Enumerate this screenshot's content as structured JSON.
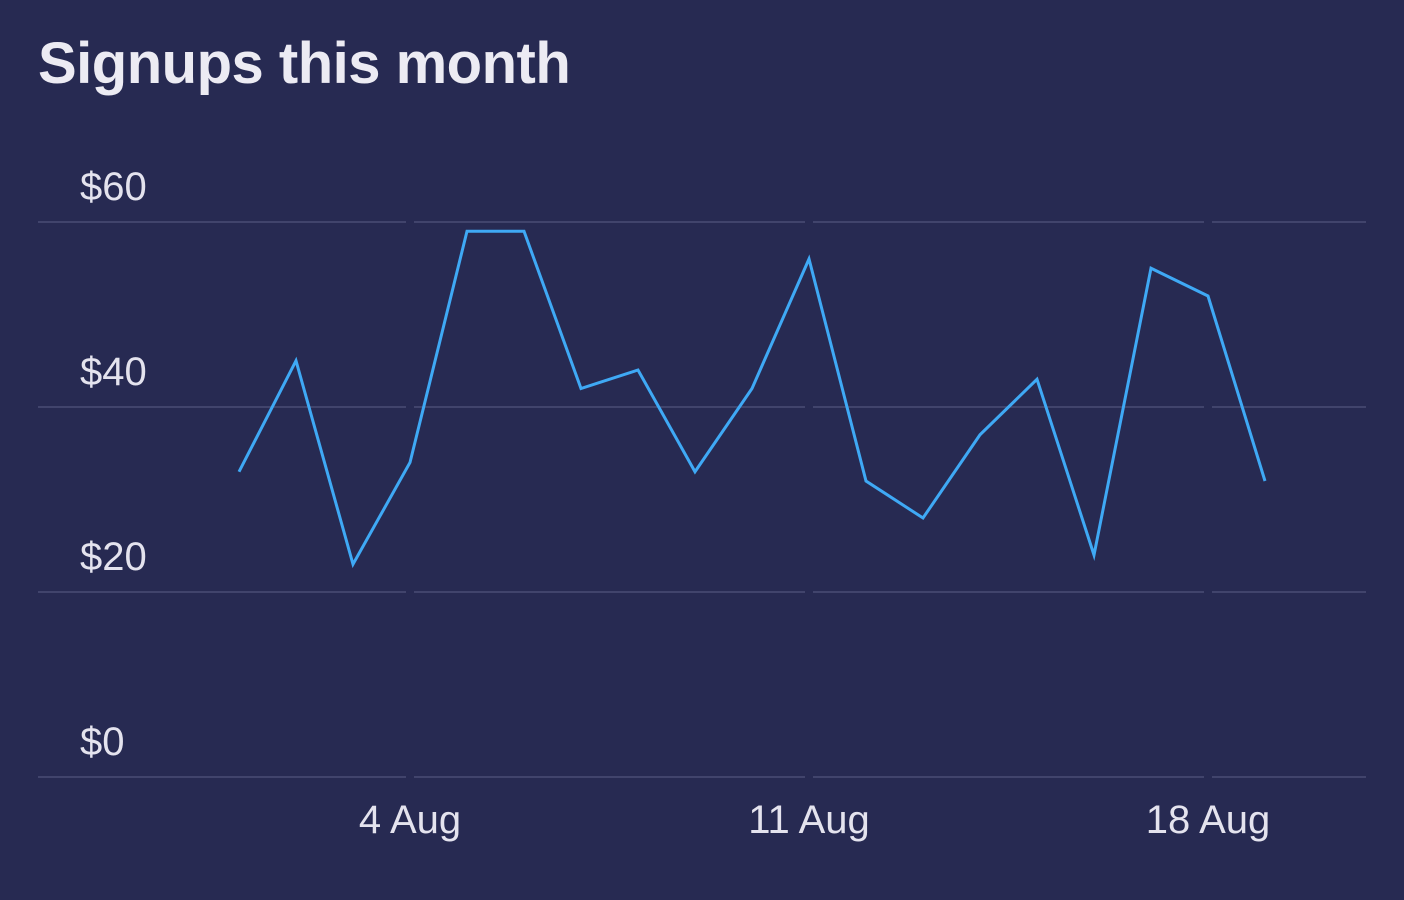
{
  "title": "Signups this month",
  "colors": {
    "background": "#272a52",
    "line": "#3fa9f5",
    "grid": "#4a4d74",
    "text": "#e4e3ee"
  },
  "chart_data": {
    "type": "line",
    "title": "Signups this month",
    "xlabel": "",
    "ylabel": "",
    "grid": true,
    "legend": "none",
    "ylim": [
      0,
      60
    ],
    "y_ticks": [
      {
        "value": 0,
        "label": "$0"
      },
      {
        "value": 20,
        "label": "$20"
      },
      {
        "value": 40,
        "label": "$40"
      },
      {
        "value": 60,
        "label": "$60"
      }
    ],
    "x_ticks": [
      "4 Aug",
      "11 Aug",
      "18 Aug"
    ],
    "series": [
      {
        "x": [
          "1 Aug",
          "2 Aug",
          "3 Aug",
          "4 Aug",
          "5 Aug",
          "6 Aug",
          "7 Aug",
          "8 Aug",
          "9 Aug",
          "10 Aug",
          "11 Aug",
          "12 Aug",
          "13 Aug",
          "14 Aug",
          "15 Aug",
          "16 Aug",
          "17 Aug",
          "18 Aug",
          "19 Aug"
        ],
        "values": [
          33,
          45,
          23,
          34,
          59,
          59,
          42,
          44,
          33,
          42,
          56,
          32,
          28,
          37,
          43,
          24,
          55,
          52,
          32
        ]
      }
    ]
  }
}
